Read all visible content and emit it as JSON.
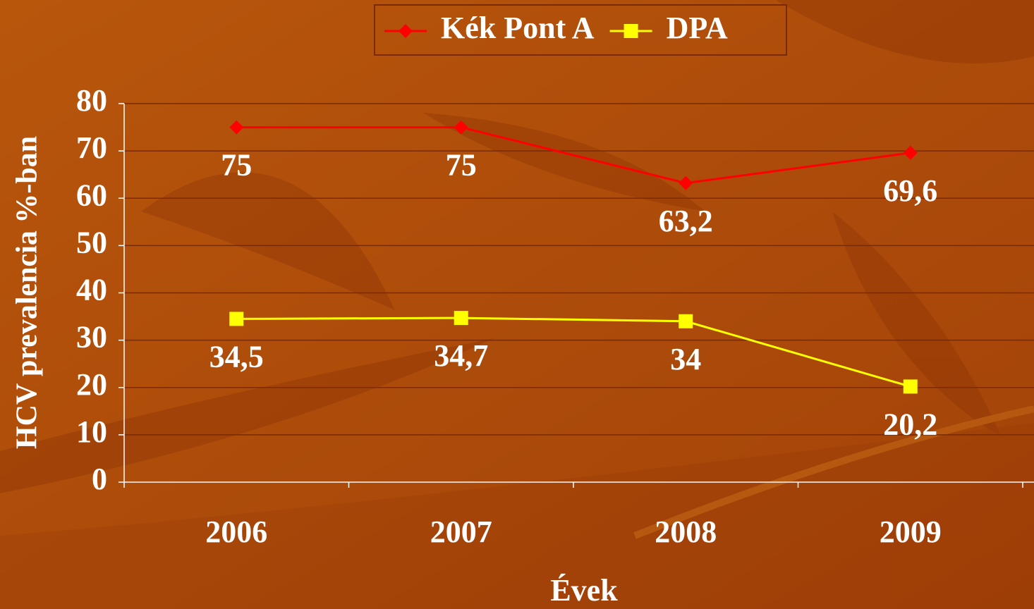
{
  "chart_data": {
    "type": "line",
    "categories": [
      "2006",
      "2007",
      "2008",
      "2009"
    ],
    "series": [
      {
        "name": "Kék Pont A",
        "color": "#ff0000",
        "marker": "diamond",
        "values": [
          75,
          75,
          63.2,
          69.6
        ],
        "value_labels": [
          "75",
          "75",
          "63,2",
          "69,6"
        ]
      },
      {
        "name": "DPA",
        "color": "#ffff00",
        "marker": "square",
        "values": [
          34.5,
          34.7,
          34,
          20.2
        ],
        "value_labels": [
          "34,5",
          "34,7",
          "34",
          "20,2"
        ]
      }
    ],
    "ylim": [
      0,
      80
    ],
    "yticks": [
      0,
      10,
      20,
      30,
      40,
      50,
      60,
      70,
      80
    ],
    "grid": true,
    "ylabel": "HCV prevalencia %-ban",
    "xlabel": "Évek",
    "legend": "top"
  }
}
